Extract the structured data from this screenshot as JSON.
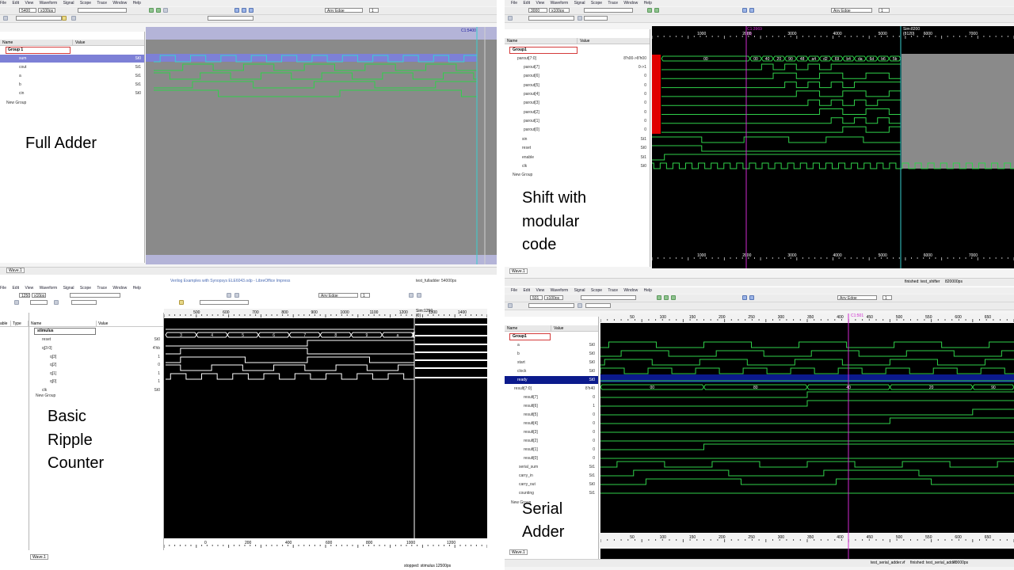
{
  "captions": {
    "full_adder": "Full Adder",
    "shift_line1": "Shift with",
    "shift_line2": "modular",
    "shift_line3": "code",
    "counter_line1": "Basic",
    "counter_line2": "Ripple",
    "counter_line3": "Counter",
    "serial_line1": "Serial",
    "serial_line2": "Adder"
  },
  "menu": [
    "File",
    "Edit",
    "View",
    "Waveform",
    "Signal",
    "Scope",
    "Trace",
    "Window",
    "Help"
  ],
  "edge_select": "Any Edge",
  "full_adder": {
    "time_value": "5400",
    "time_unit": "x100ps",
    "tree_header": {
      "name": "Name",
      "value": "Value"
    },
    "group": "Group 1",
    "signals": [
      {
        "name": "sum",
        "value": "St0",
        "selected": true
      },
      {
        "name": "cout",
        "value": "St1"
      },
      {
        "name": "a",
        "value": "St1"
      },
      {
        "name": "b",
        "value": "St1"
      },
      {
        "name": "cin",
        "value": "St0"
      }
    ],
    "new_group": "New Group",
    "cursor_label": "C1:5400",
    "tab": "Wave.1"
  },
  "shift": {
    "time_value": "3000",
    "time_unit": "x100ps",
    "tree_header": {
      "name": "Name",
      "value": "Value"
    },
    "group": "Group1",
    "bus": {
      "name": "parout[7:0]",
      "value": "8'h00->8'h00"
    },
    "bits": [
      {
        "name": "parout[7]",
        "value": "0->1"
      },
      {
        "name": "parout[6]",
        "value": "0"
      },
      {
        "name": "parout[5]",
        "value": "0"
      },
      {
        "name": "parout[4]",
        "value": "0"
      },
      {
        "name": "parout[3]",
        "value": "0"
      },
      {
        "name": "parout[2]",
        "value": "0"
      },
      {
        "name": "parout[1]",
        "value": "0"
      },
      {
        "name": "parout[0]",
        "value": "0"
      }
    ],
    "others": [
      {
        "name": "sin",
        "value": "St1"
      },
      {
        "name": "reset",
        "value": "St0"
      },
      {
        "name": "enable",
        "value": "St1"
      },
      {
        "name": "clk",
        "value": "St0"
      }
    ],
    "new_group": "New Group",
    "cursor1": "C1:3969",
    "cursor1_sub": "{0}",
    "cursor2": "Sim:8200",
    "cursor2_sub": "{8120}",
    "bus_values": [
      "00",
      "00",
      "40",
      "20",
      "90",
      "48",
      "a4",
      "d2",
      "69",
      "b4",
      "da",
      "6d",
      "b6",
      "5b"
    ],
    "axis_ticks": [
      "1000",
      "2000",
      "3000",
      "4000",
      "5000",
      "6000",
      "7000"
    ],
    "status": "finished: test_shifter",
    "status_time": "820000ps",
    "tab": "Wave.1"
  },
  "counter": {
    "title": "Verilog Examples with Synopsys ELE6043.odp - LibreOffice Impress",
    "time_value": "1250",
    "time_unit": "x10ps",
    "tree_header": {
      "type": "Type",
      "name": "Name",
      "value": "Value"
    },
    "group": "stimulus",
    "signals": [
      {
        "name": "reset",
        "value": "St0",
        "indent": 1
      },
      {
        "name": "q[3:0]",
        "value": "4'hb",
        "indent": 1
      },
      {
        "name": "q[3]",
        "value": "1",
        "indent": 2
      },
      {
        "name": "q[2]",
        "value": "0",
        "indent": 2
      },
      {
        "name": "q[1]",
        "value": "1",
        "indent": 2
      },
      {
        "name": "q[0]",
        "value": "1",
        "indent": 2
      },
      {
        "name": "clk",
        "value": "St0",
        "indent": 1
      }
    ],
    "new_group": "New Group",
    "bus_values": [
      "3",
      "4",
      "5",
      "6",
      "7",
      "8",
      "9",
      "a",
      "b"
    ],
    "sim_label": "Sim:1250",
    "sim_sub": "{0}",
    "axis_top": [
      "500",
      "600",
      "700",
      "800",
      "900",
      "1000",
      "1100",
      "1200",
      "1300",
      "1400"
    ],
    "axis_bottom": [
      "0",
      "200",
      "400",
      "600",
      "800",
      "1000",
      "1200"
    ],
    "status": "stopped: stimulus",
    "status_time": "12500ps",
    "tab_name": "test_fulladder",
    "tab_time": "54000ps",
    "tab": "Wave.1"
  },
  "serial": {
    "time_value": "501",
    "time_unit": "x100ps",
    "tree_header": {
      "name": "Name",
      "value": "Value"
    },
    "group": "Group1",
    "inputs": [
      {
        "name": "a",
        "value": "St0"
      },
      {
        "name": "b",
        "value": "St0"
      },
      {
        "name": "start",
        "value": "St0"
      },
      {
        "name": "clock",
        "value": "St0"
      },
      {
        "name": "ready",
        "value": "St0",
        "selected": true
      }
    ],
    "bus": {
      "name": "result[7:0]",
      "value": "8'h40"
    },
    "bits": [
      {
        "name": "result[7]",
        "value": "0"
      },
      {
        "name": "result[6]",
        "value": "1"
      },
      {
        "name": "result[5]",
        "value": "0"
      },
      {
        "name": "result[4]",
        "value": "0"
      },
      {
        "name": "result[3]",
        "value": "0"
      },
      {
        "name": "result[2]",
        "value": "0"
      },
      {
        "name": "result[1]",
        "value": "0"
      },
      {
        "name": "result[0]",
        "value": "0"
      }
    ],
    "others": [
      {
        "name": "serial_sum",
        "value": "St1"
      },
      {
        "name": "carry_in",
        "value": "St1"
      },
      {
        "name": "carry_out",
        "value": "St0"
      },
      {
        "name": "counting",
        "value": "St1"
      }
    ],
    "new_group": "New Group",
    "cursor_label": "C1:501",
    "bus_values": [
      "00",
      "80",
      "40",
      "20",
      "90"
    ],
    "axis_ticks": [
      "50",
      "100",
      "150",
      "200",
      "250",
      "300",
      "350",
      "400",
      "450",
      "500",
      "550",
      "600",
      "650"
    ],
    "status_name": "test_serial_adder.vf",
    "status": "finished: test_serial_adder",
    "status_time": "70000ps",
    "tab": "Wave.1"
  },
  "colors": {
    "wave_green": "#2fd14a",
    "wave_cyan": "#39d0d0",
    "cursor_magenta": "#d02ad0",
    "cursor_cyan": "#2ad0d0",
    "x_red": "#e00000",
    "wave_bg_black": "#000000",
    "wave_bg_gray": "#8a8a8a",
    "selected_blue": "#0b1a8c"
  }
}
